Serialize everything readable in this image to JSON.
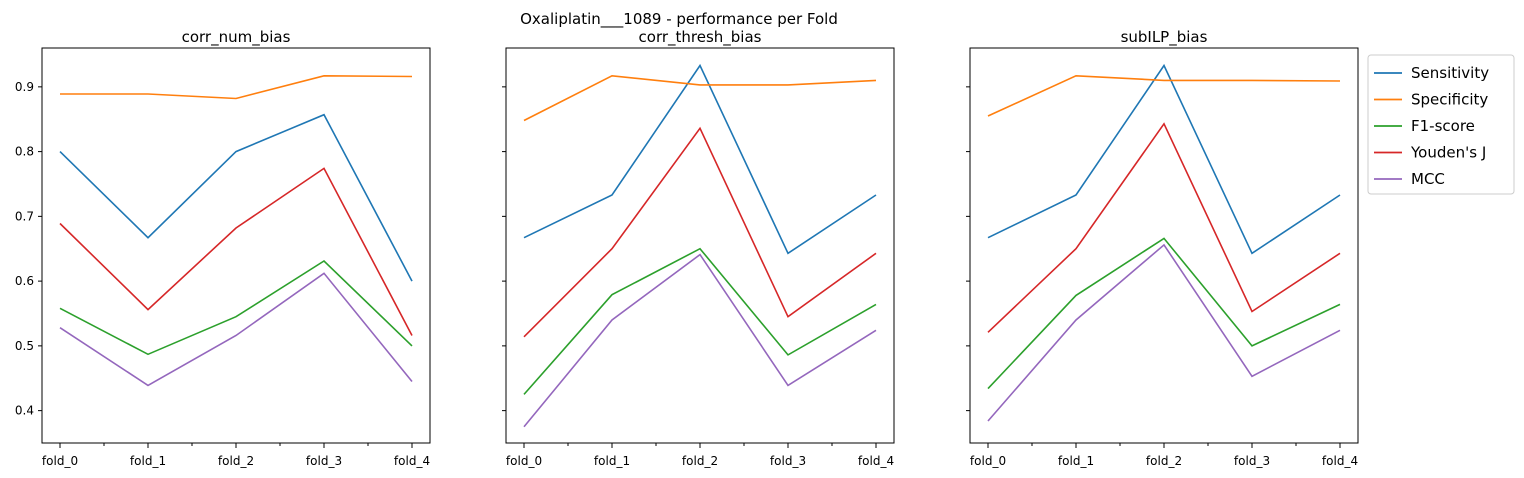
{
  "suptitle": "Oxaliplatin___1089 - performance per Fold",
  "colors": {
    "Sensitivity": "#1f77b4",
    "Specificity": "#ff7f0e",
    "F1-score": "#2ca02c",
    "Youden's J": "#d62728",
    "MCC": "#9467bd"
  },
  "legend": {
    "placement": "outside-right-top",
    "entries": [
      "Sensitivity",
      "Specificity",
      "F1-score",
      "Youden's J",
      "MCC"
    ]
  },
  "chart_data": [
    {
      "type": "line",
      "title": "corr_num_bias",
      "categories": [
        "fold_0",
        "fold_1",
        "fold_2",
        "fold_3",
        "fold_4"
      ],
      "ylim": [
        0.35,
        0.96
      ],
      "yticks": [
        0.4,
        0.5,
        0.6,
        0.7,
        0.8,
        0.9
      ],
      "series": [
        {
          "name": "Sensitivity",
          "values": [
            0.8,
            0.667,
            0.8,
            0.857,
            0.6
          ]
        },
        {
          "name": "Specificity",
          "values": [
            0.889,
            0.889,
            0.882,
            0.917,
            0.916
          ]
        },
        {
          "name": "F1-score",
          "values": [
            0.558,
            0.487,
            0.545,
            0.631,
            0.5
          ]
        },
        {
          "name": "Youden's J",
          "values": [
            0.689,
            0.556,
            0.682,
            0.774,
            0.516
          ]
        },
        {
          "name": "MCC",
          "values": [
            0.528,
            0.439,
            0.516,
            0.612,
            0.445
          ]
        }
      ]
    },
    {
      "type": "line",
      "title": "corr_thresh_bias",
      "categories": [
        "fold_0",
        "fold_1",
        "fold_2",
        "fold_3",
        "fold_4"
      ],
      "ylim": [
        0.35,
        0.96
      ],
      "yticks": [
        0.4,
        0.5,
        0.6,
        0.7,
        0.8,
        0.9
      ],
      "series": [
        {
          "name": "Sensitivity",
          "values": [
            0.667,
            0.733,
            0.933,
            0.643,
            0.733
          ]
        },
        {
          "name": "Specificity",
          "values": [
            0.848,
            0.917,
            0.903,
            0.903,
            0.91
          ]
        },
        {
          "name": "F1-score",
          "values": [
            0.425,
            0.579,
            0.65,
            0.486,
            0.564
          ]
        },
        {
          "name": "Youden's J",
          "values": [
            0.514,
            0.65,
            0.836,
            0.545,
            0.643
          ]
        },
        {
          "name": "MCC",
          "values": [
            0.375,
            0.54,
            0.641,
            0.439,
            0.524
          ]
        }
      ]
    },
    {
      "type": "line",
      "title": "subILP_bias",
      "categories": [
        "fold_0",
        "fold_1",
        "fold_2",
        "fold_3",
        "fold_4"
      ],
      "ylim": [
        0.35,
        0.96
      ],
      "yticks": [
        0.4,
        0.5,
        0.6,
        0.7,
        0.8,
        0.9
      ],
      "series": [
        {
          "name": "Sensitivity",
          "values": [
            0.667,
            0.733,
            0.933,
            0.643,
            0.733
          ]
        },
        {
          "name": "Specificity",
          "values": [
            0.855,
            0.917,
            0.91,
            0.91,
            0.909
          ]
        },
        {
          "name": "F1-score",
          "values": [
            0.434,
            0.578,
            0.666,
            0.5,
            0.564
          ]
        },
        {
          "name": "Youden's J",
          "values": [
            0.521,
            0.65,
            0.843,
            0.553,
            0.643
          ]
        },
        {
          "name": "MCC",
          "values": [
            0.384,
            0.54,
            0.656,
            0.453,
            0.524
          ]
        }
      ]
    }
  ]
}
